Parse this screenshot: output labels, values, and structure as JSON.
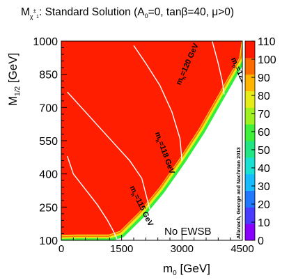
{
  "chart_data": {
    "type": "heatmap",
    "title": {
      "prefix": "M",
      "prefix_sub": "χ",
      "prefix_sup": "±",
      "prefix_sub2": "1",
      "rest_a": ": Standard Solution (A",
      "rest_a_sub": "0",
      "rest_b": "=0, tanβ=40, μ>0)"
    },
    "xlabel": {
      "main": "m",
      "sub": "0",
      "unit": " [GeV]"
    },
    "ylabel": {
      "main": "M",
      "sub": "1/2",
      "unit": " [GeV]"
    },
    "xlim": [
      0,
      4500
    ],
    "ylim": [
      100,
      1000
    ],
    "x_ticks": [
      "0",
      "1500",
      "3000",
      "4500"
    ],
    "x_tick_values": [
      0,
      1500,
      3000,
      4500
    ],
    "y_ticks": [
      "100",
      "250",
      "400",
      "550",
      "700",
      "850",
      "1000"
    ],
    "y_tick_values": [
      100,
      250,
      400,
      550,
      700,
      850,
      1000
    ],
    "colorbar": {
      "ticks": [
        "0",
        "10",
        "20",
        "30",
        "40",
        "50",
        "60",
        "70",
        "80",
        "90",
        "100",
        "110"
      ],
      "range": [
        0,
        110
      ],
      "colors": [
        "#8a00ff",
        "#4a3cff",
        "#1f78ff",
        "#17bcff",
        "#19e0d2",
        "#22e684",
        "#3ef03a",
        "#9ef01e",
        "#e6ec18",
        "#ffb400",
        "#ff6a00",
        "#ff1a00"
      ]
    },
    "region_color": "#ff1e00",
    "no_ewsb_boundary": [
      [
        0,
        110
      ],
      [
        400,
        112
      ],
      [
        1200,
        112
      ],
      [
        1500,
        130
      ],
      [
        2000,
        220
      ],
      [
        2500,
        330
      ],
      [
        3000,
        460
      ],
      [
        3500,
        600
      ],
      [
        4000,
        760
      ],
      [
        4500,
        920
      ],
      [
        4560,
        1000
      ]
    ],
    "contours": [
      {
        "label": "m_h=115 GeV",
        "label_main": "m",
        "label_sub": "h",
        "label_rest": "=115 GeV",
        "points": [
          [
            150,
            480
          ],
          [
            300,
            400
          ],
          [
            600,
            330
          ],
          [
            900,
            260
          ],
          [
            1150,
            190
          ],
          [
            1300,
            140
          ],
          [
            1400,
            100
          ]
        ]
      },
      {
        "label": "m_h=118 GeV",
        "label_main": "m",
        "label_sub": "h",
        "label_rest": "=118 GeV",
        "points": [
          [
            150,
            770
          ],
          [
            500,
            700
          ],
          [
            900,
            620
          ],
          [
            1300,
            540
          ],
          [
            1700,
            460
          ],
          [
            2000,
            380
          ],
          [
            2200,
            240
          ]
        ]
      },
      {
        "label": "m_h=120 GeV",
        "label_main": "m",
        "label_sub": "h",
        "label_rest": "=120 GeV",
        "points": [
          [
            1800,
            980
          ],
          [
            2100,
            900
          ],
          [
            2450,
            800
          ],
          [
            2750,
            680
          ],
          [
            2950,
            560
          ],
          [
            3000,
            460
          ]
        ]
      },
      {
        "label": "m_h=122 GeV",
        "label_main": "m",
        "label_sub": "h",
        "label_rest": "=122 GeV",
        "points": [
          [
            3750,
            1000
          ],
          [
            3900,
            900
          ],
          [
            4000,
            820
          ],
          [
            4050,
            760
          ]
        ]
      }
    ],
    "region_label": "No EWSB",
    "credit": "Allanach, George and Nachman 2013"
  }
}
